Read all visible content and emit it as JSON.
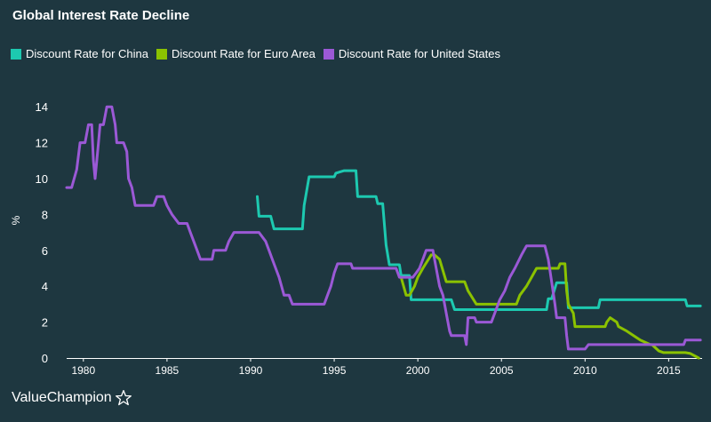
{
  "chart_data": {
    "type": "line",
    "title": "Global Interest Rate Decline",
    "xlabel": "",
    "ylabel": "%",
    "xlim": [
      1979,
      2017
    ],
    "ylim": [
      0,
      15
    ],
    "x_ticks": [
      1980,
      1985,
      1990,
      1995,
      2000,
      2005,
      2010,
      2015
    ],
    "y_ticks": [
      0,
      2,
      4,
      6,
      8,
      10,
      12,
      14
    ],
    "legend_position": "top-left",
    "grid": false,
    "series": [
      {
        "name": "Discount Rate for China",
        "color": "#1dc9b0",
        "points": [
          [
            1990.4,
            9.0
          ],
          [
            1990.5,
            7.9
          ],
          [
            1991.2,
            7.9
          ],
          [
            1991.4,
            7.2
          ],
          [
            1993.1,
            7.2
          ],
          [
            1993.2,
            8.5
          ],
          [
            1993.5,
            10.1
          ],
          [
            1995.0,
            10.1
          ],
          [
            1995.1,
            10.3
          ],
          [
            1995.6,
            10.44
          ],
          [
            1996.3,
            10.44
          ],
          [
            1996.4,
            9.0
          ],
          [
            1997.5,
            9.0
          ],
          [
            1997.6,
            8.6
          ],
          [
            1997.9,
            8.6
          ],
          [
            1998.1,
            6.3
          ],
          [
            1998.3,
            5.2
          ],
          [
            1998.9,
            5.2
          ],
          [
            1999.0,
            4.6
          ],
          [
            1999.5,
            4.6
          ],
          [
            1999.6,
            3.25
          ],
          [
            2002.0,
            3.25
          ],
          [
            2002.2,
            2.7
          ],
          [
            2007.7,
            2.7
          ],
          [
            2007.8,
            3.3
          ],
          [
            2008.0,
            3.3
          ],
          [
            2008.3,
            4.2
          ],
          [
            2008.9,
            4.2
          ],
          [
            2009.0,
            2.8
          ],
          [
            2010.8,
            2.8
          ],
          [
            2010.9,
            3.25
          ],
          [
            2016.0,
            3.25
          ],
          [
            2016.1,
            2.9
          ],
          [
            2016.9,
            2.9
          ]
        ]
      },
      {
        "name": "Discount Rate for Euro Area",
        "color": "#8bc200",
        "points": [
          [
            1999.0,
            4.5
          ],
          [
            1999.3,
            3.5
          ],
          [
            1999.5,
            3.5
          ],
          [
            1999.8,
            4.0
          ],
          [
            2000.0,
            4.5
          ],
          [
            2000.3,
            5.0
          ],
          [
            2000.8,
            5.75
          ],
          [
            2001.0,
            5.75
          ],
          [
            2001.3,
            5.5
          ],
          [
            2001.7,
            4.25
          ],
          [
            2002.8,
            4.25
          ],
          [
            2003.0,
            3.75
          ],
          [
            2003.5,
            3.0
          ],
          [
            2005.9,
            3.0
          ],
          [
            2006.1,
            3.5
          ],
          [
            2006.5,
            4.0
          ],
          [
            2006.8,
            4.5
          ],
          [
            2007.1,
            5.0
          ],
          [
            2008.4,
            5.0
          ],
          [
            2008.5,
            5.25
          ],
          [
            2008.8,
            5.25
          ],
          [
            2008.9,
            3.75
          ],
          [
            2009.0,
            3.0
          ],
          [
            2009.3,
            2.5
          ],
          [
            2009.4,
            1.75
          ],
          [
            2011.2,
            1.75
          ],
          [
            2011.3,
            2.0
          ],
          [
            2011.5,
            2.25
          ],
          [
            2011.9,
            2.0
          ],
          [
            2012.0,
            1.75
          ],
          [
            2012.5,
            1.5
          ],
          [
            2013.3,
            1.0
          ],
          [
            2013.9,
            0.75
          ],
          [
            2014.0,
            0.75
          ],
          [
            2014.4,
            0.4
          ],
          [
            2014.7,
            0.3
          ],
          [
            2016.0,
            0.3
          ],
          [
            2016.3,
            0.25
          ],
          [
            2016.6,
            0.1
          ],
          [
            2016.8,
            0.0
          ]
        ]
      },
      {
        "name": "Discount Rate for United States",
        "color": "#9b59d6",
        "points": [
          [
            1979.0,
            9.5
          ],
          [
            1979.3,
            9.5
          ],
          [
            1979.6,
            10.5
          ],
          [
            1979.8,
            12.0
          ],
          [
            1980.1,
            12.0
          ],
          [
            1980.3,
            13.0
          ],
          [
            1980.5,
            13.0
          ],
          [
            1980.6,
            11.0
          ],
          [
            1980.7,
            10.0
          ],
          [
            1980.9,
            12.0
          ],
          [
            1981.0,
            13.0
          ],
          [
            1981.2,
            13.0
          ],
          [
            1981.4,
            14.0
          ],
          [
            1981.7,
            14.0
          ],
          [
            1981.9,
            13.0
          ],
          [
            1982.0,
            12.0
          ],
          [
            1982.4,
            12.0
          ],
          [
            1982.6,
            11.5
          ],
          [
            1982.7,
            10.0
          ],
          [
            1982.9,
            9.5
          ],
          [
            1983.1,
            8.5
          ],
          [
            1984.2,
            8.5
          ],
          [
            1984.4,
            9.0
          ],
          [
            1984.8,
            9.0
          ],
          [
            1985.0,
            8.5
          ],
          [
            1985.3,
            8.0
          ],
          [
            1985.7,
            7.5
          ],
          [
            1986.2,
            7.5
          ],
          [
            1986.4,
            7.0
          ],
          [
            1986.6,
            6.5
          ],
          [
            1986.8,
            6.0
          ],
          [
            1987.0,
            5.5
          ],
          [
            1987.7,
            5.5
          ],
          [
            1987.8,
            6.0
          ],
          [
            1988.5,
            6.0
          ],
          [
            1988.7,
            6.5
          ],
          [
            1989.0,
            7.0
          ],
          [
            1990.5,
            7.0
          ],
          [
            1990.9,
            6.5
          ],
          [
            1991.1,
            6.0
          ],
          [
            1991.3,
            5.5
          ],
          [
            1991.5,
            5.0
          ],
          [
            1991.7,
            4.5
          ],
          [
            1992.0,
            3.5
          ],
          [
            1992.3,
            3.5
          ],
          [
            1992.5,
            3.0
          ],
          [
            1994.4,
            3.0
          ],
          [
            1994.6,
            3.5
          ],
          [
            1994.8,
            4.0
          ],
          [
            1995.0,
            4.75
          ],
          [
            1995.2,
            5.25
          ],
          [
            1996.0,
            5.25
          ],
          [
            1996.1,
            5.0
          ],
          [
            1998.7,
            5.0
          ],
          [
            1998.9,
            4.5
          ],
          [
            1999.7,
            4.5
          ],
          [
            1999.9,
            4.75
          ],
          [
            2000.1,
            5.0
          ],
          [
            2000.3,
            5.5
          ],
          [
            2000.5,
            6.0
          ],
          [
            2000.9,
            6.0
          ],
          [
            2001.1,
            5.0
          ],
          [
            2001.3,
            4.0
          ],
          [
            2001.5,
            3.5
          ],
          [
            2001.7,
            2.5
          ],
          [
            2001.9,
            1.5
          ],
          [
            2002.0,
            1.25
          ],
          [
            2002.8,
            1.25
          ],
          [
            2002.9,
            0.75
          ],
          [
            2003.0,
            2.25
          ],
          [
            2003.4,
            2.25
          ],
          [
            2003.5,
            2.0
          ],
          [
            2004.4,
            2.0
          ],
          [
            2004.6,
            2.5
          ],
          [
            2004.9,
            3.25
          ],
          [
            2005.2,
            3.75
          ],
          [
            2005.5,
            4.5
          ],
          [
            2005.8,
            5.0
          ],
          [
            2006.2,
            5.75
          ],
          [
            2006.5,
            6.25
          ],
          [
            2007.6,
            6.25
          ],
          [
            2007.8,
            5.5
          ],
          [
            2008.0,
            4.25
          ],
          [
            2008.2,
            3.0
          ],
          [
            2008.3,
            2.25
          ],
          [
            2008.8,
            2.25
          ],
          [
            2008.9,
            1.25
          ],
          [
            2009.0,
            0.5
          ],
          [
            2010.0,
            0.5
          ],
          [
            2010.2,
            0.75
          ],
          [
            2015.9,
            0.75
          ],
          [
            2016.0,
            1.0
          ],
          [
            2016.9,
            1.0
          ]
        ]
      }
    ]
  },
  "brand": {
    "name": "ValueChampion"
  }
}
